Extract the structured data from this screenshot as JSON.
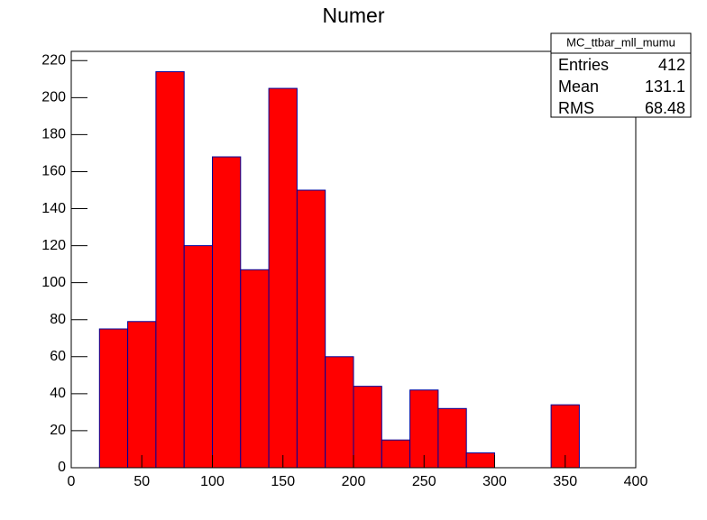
{
  "chart_data": {
    "type": "histogram",
    "title": "Numer",
    "bins": [
      0,
      20,
      40,
      60,
      80,
      100,
      120,
      140,
      160,
      180,
      200,
      220,
      240,
      260,
      280,
      300,
      320,
      340,
      360,
      380,
      400
    ],
    "values": [
      0,
      75,
      79,
      214,
      120,
      168,
      107,
      205,
      150,
      60,
      44,
      15,
      42,
      32,
      8,
      0,
      0,
      34,
      0,
      0
    ],
    "color": "#ff0000",
    "edge_color": "#000099",
    "xlim": [
      0,
      400
    ],
    "xticks": [
      0,
      50,
      100,
      150,
      200,
      250,
      300,
      350,
      400
    ],
    "ylim": [
      0,
      225
    ],
    "yticks": [
      0,
      20,
      40,
      60,
      80,
      100,
      120,
      140,
      160,
      180,
      200,
      220
    ],
    "stats": {
      "title": "MC_ttbar_mll_mumu",
      "rows": [
        {
          "label": "Entries",
          "value": 412
        },
        {
          "label": "Mean",
          "value": 131.1
        },
        {
          "label": "RMS",
          "value": 68.48
        }
      ]
    }
  }
}
